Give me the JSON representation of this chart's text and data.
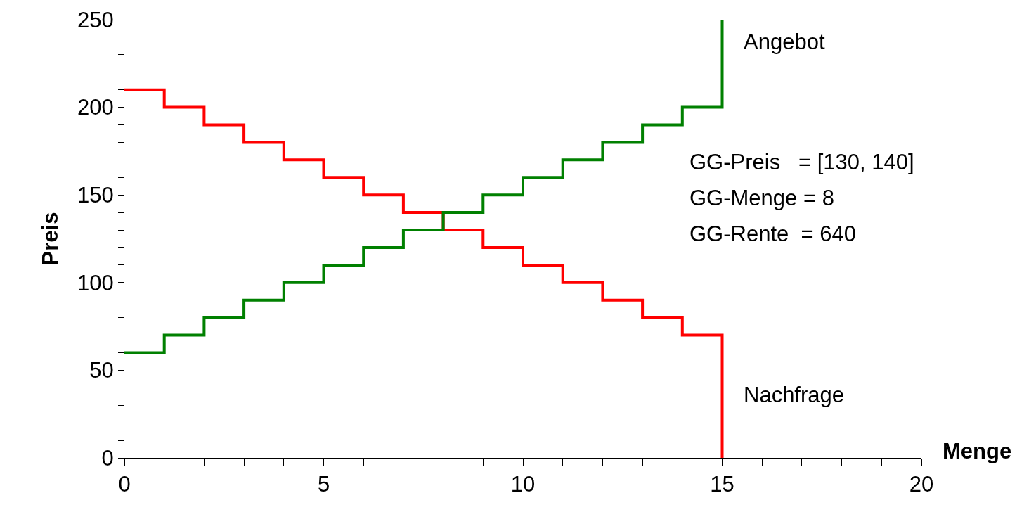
{
  "chart_data": {
    "type": "step",
    "xlabel": "Menge",
    "ylabel": "Preis",
    "series": [
      {
        "name": "Nachfrage",
        "color": "#ff0000",
        "x": [
          0,
          1,
          2,
          3,
          4,
          5,
          6,
          7,
          8,
          9,
          10,
          11,
          12,
          13,
          14,
          15
        ],
        "values": [
          210,
          200,
          190,
          180,
          170,
          160,
          150,
          140,
          130,
          120,
          110,
          100,
          90,
          80,
          70,
          0
        ]
      },
      {
        "name": "Angebot",
        "color": "#008000",
        "x": [
          0,
          1,
          2,
          3,
          4,
          5,
          6,
          7,
          8,
          9,
          10,
          11,
          12,
          13,
          14,
          15
        ],
        "values": [
          60,
          70,
          80,
          90,
          100,
          110,
          120,
          130,
          140,
          150,
          160,
          170,
          180,
          190,
          200,
          250
        ]
      }
    ],
    "annotations": [
      "GG-Preis   = [130, 140]",
      "GG-Menge = 8",
      "GG-Rente  = 640"
    ],
    "xlim": [
      0,
      20
    ],
    "xticks": [
      0,
      {
        "value": 1,
        "label": null
      },
      {
        "value": 2,
        "label": null
      },
      {
        "value": 3,
        "label": null
      },
      {
        "value": 4,
        "label": null
      },
      5,
      {
        "value": 6,
        "label": null
      },
      {
        "value": 7,
        "label": null
      },
      {
        "value": 8,
        "label": null
      },
      {
        "value": 9,
        "label": null
      },
      10,
      {
        "value": 11,
        "label": null
      },
      {
        "value": 12,
        "label": null
      },
      {
        "value": 13,
        "label": null
      },
      {
        "value": 14,
        "label": null
      },
      15,
      {
        "value": 16,
        "label": null
      },
      {
        "value": 17,
        "label": null
      },
      {
        "value": 18,
        "label": null
      },
      {
        "value": 19,
        "label": null
      },
      20
    ],
    "ylim": [
      0,
      250
    ],
    "yticks": [
      0,
      {
        "value": 10,
        "label": null
      },
      {
        "value": 20,
        "label": null
      },
      {
        "value": 30,
        "label": null
      },
      {
        "value": 40,
        "label": null
      },
      50,
      {
        "value": 60,
        "label": null
      },
      {
        "value": 70,
        "label": null
      },
      {
        "value": 80,
        "label": null
      },
      {
        "value": 90,
        "label": null
      },
      100,
      {
        "value": 110,
        "label": null
      },
      {
        "value": 120,
        "label": null
      },
      {
        "value": 130,
        "label": null
      },
      {
        "value": 140,
        "label": null
      },
      150,
      {
        "value": 160,
        "label": null
      },
      {
        "value": 170,
        "label": null
      },
      {
        "value": 180,
        "label": null
      },
      {
        "value": 190,
        "label": null
      },
      200,
      {
        "value": 210,
        "label": null
      },
      {
        "value": 220,
        "label": null
      },
      {
        "value": 230,
        "label": null
      },
      {
        "value": 240,
        "label": null
      },
      250
    ],
    "grid": false,
    "legend": false,
    "marker": "none",
    "line_style": "solid"
  }
}
